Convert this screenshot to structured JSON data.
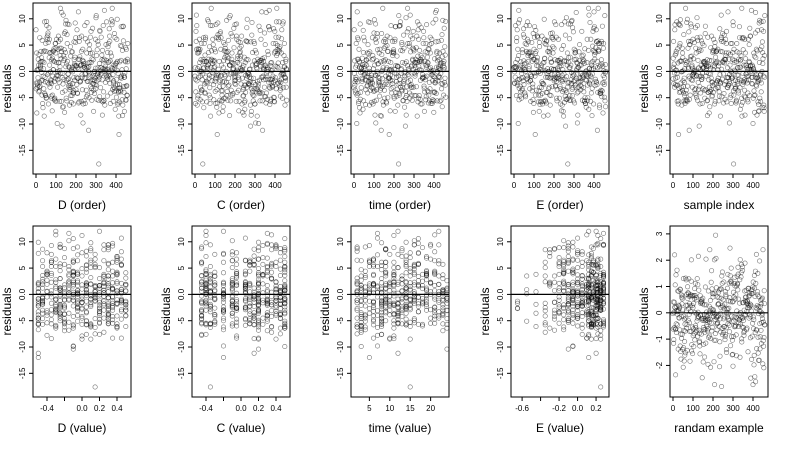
{
  "chart_data": [
    {
      "type": "scatter",
      "xlabel": "D (order)",
      "ylabel": "residuals",
      "xlim": [
        -15,
        475
      ],
      "ylim": [
        -19.5,
        13
      ],
      "xticks": [
        0,
        100,
        200,
        300,
        400
      ],
      "yticks": [
        -15,
        -10,
        -5,
        0,
        5,
        10
      ],
      "hline": 0,
      "xmode": "order",
      "points": []
    },
    {
      "type": "scatter",
      "xlabel": "C (order)",
      "ylabel": "residuals",
      "xlim": [
        -15,
        475
      ],
      "ylim": [
        -19.5,
        13
      ],
      "xticks": [
        0,
        100,
        200,
        300,
        400
      ],
      "yticks": [
        -15,
        -10,
        -5,
        0,
        5,
        10
      ],
      "hline": 0,
      "xmode": "order",
      "points": []
    },
    {
      "type": "scatter",
      "xlabel": "time (order)",
      "ylabel": "residuals",
      "xlim": [
        -15,
        475
      ],
      "ylim": [
        -19.5,
        13
      ],
      "xticks": [
        0,
        100,
        200,
        300,
        400
      ],
      "yticks": [
        -15,
        -10,
        -5,
        0,
        5,
        10
      ],
      "hline": 0,
      "xmode": "order",
      "points": []
    },
    {
      "type": "scatter",
      "xlabel": "E (order)",
      "ylabel": "residuals",
      "xlim": [
        -15,
        475
      ],
      "ylim": [
        -19.5,
        13
      ],
      "xticks": [
        0,
        100,
        200,
        300,
        400
      ],
      "yticks": [
        -15,
        -10,
        -5,
        0,
        5,
        10
      ],
      "hline": 0,
      "xmode": "order",
      "points": []
    },
    {
      "type": "scatter",
      "xlabel": "sample index",
      "ylabel": "residuals",
      "xlim": [
        -15,
        475
      ],
      "ylim": [
        -19.5,
        13
      ],
      "xticks": [
        0,
        100,
        200,
        300,
        400
      ],
      "yticks": [
        -15,
        -10,
        -5,
        0,
        5,
        10
      ],
      "hline": 0,
      "xmode": "order",
      "points": []
    },
    {
      "type": "scatter",
      "xlabel": "D (value)",
      "ylabel": "residuals",
      "xlim": [
        -0.56,
        0.56
      ],
      "ylim": [
        -19.5,
        13
      ],
      "xticks": [
        -0.4,
        -0.2,
        0.0,
        0.2,
        0.4
      ],
      "xtick_labels": [
        "-0.4",
        "",
        "0.0",
        "0.2",
        "0.4"
      ],
      "yticks": [
        -15,
        -10,
        -5,
        0,
        5,
        10
      ],
      "hline": 0,
      "xmode": "value",
      "xvals": [
        -0.5,
        -0.45,
        -0.4,
        -0.35,
        -0.3,
        -0.25,
        -0.2,
        -0.15,
        -0.1,
        -0.05,
        0.0,
        0.05,
        0.1,
        0.15,
        0.2,
        0.25,
        0.3,
        0.35,
        0.4,
        0.45,
        0.5
      ],
      "points": []
    },
    {
      "type": "scatter",
      "xlabel": "C (value)",
      "ylabel": "residuals",
      "xlim": [
        -0.56,
        0.56
      ],
      "ylim": [
        -19.5,
        13
      ],
      "xticks": [
        -0.4,
        -0.2,
        0.0,
        0.2,
        0.4
      ],
      "xtick_labels": [
        "-0.4",
        "",
        "0.0",
        "0.2",
        "0.4"
      ],
      "yticks": [
        -15,
        -10,
        -5,
        0,
        5,
        10
      ],
      "hline": 0,
      "xmode": "value",
      "xvals": [
        -0.45,
        -0.4,
        -0.35,
        -0.3,
        -0.2,
        -0.1,
        -0.05,
        0.05,
        0.1,
        0.15,
        0.2,
        0.25,
        0.3,
        0.35,
        0.4,
        0.45,
        0.5
      ],
      "points": []
    },
    {
      "type": "scatter",
      "xlabel": "time (value)",
      "ylabel": "residuals",
      "xlim": [
        0.5,
        24.5
      ],
      "ylim": [
        -19.5,
        13
      ],
      "xticks": [
        5,
        10,
        15,
        20
      ],
      "yticks": [
        -15,
        -10,
        -5,
        0,
        5,
        10
      ],
      "hline": 0,
      "xmode": "value",
      "xvals": [
        2,
        3,
        4,
        5,
        6,
        7,
        8,
        9,
        10,
        11,
        12,
        13,
        14,
        15,
        16,
        17,
        18,
        19,
        20,
        21,
        22,
        23,
        24
      ],
      "points": []
    },
    {
      "type": "scatter",
      "xlabel": "E (value)",
      "ylabel": "residuals",
      "xlim": [
        -0.72,
        0.34
      ],
      "ylim": [
        -19.5,
        13
      ],
      "xticks": [
        -0.6,
        -0.4,
        -0.2,
        0.0,
        0.2
      ],
      "xtick_labels": [
        "-0.6",
        "",
        "-0.2",
        "0.0",
        "0.2"
      ],
      "yticks": [
        -15,
        -10,
        -5,
        0,
        5,
        10
      ],
      "hline": 0,
      "xmode": "value",
      "xvals": [
        -0.65,
        -0.55,
        -0.45,
        -0.35,
        -0.3,
        -0.25,
        -0.2,
        -0.15,
        -0.1,
        -0.05,
        0.0,
        0.05,
        0.1,
        0.12,
        0.15,
        0.17,
        0.2,
        0.22,
        0.25,
        0.28
      ],
      "points": []
    },
    {
      "type": "scatter",
      "xlabel": "randam example",
      "ylabel": "residuals",
      "xlim": [
        -15,
        475
      ],
      "ylim": [
        -3.2,
        3.3
      ],
      "xticks": [
        0,
        100,
        200,
        300,
        400
      ],
      "yticks": [
        -2,
        -1,
        0,
        1,
        2,
        3
      ],
      "hline": 0,
      "xmode": "order",
      "points": []
    }
  ]
}
